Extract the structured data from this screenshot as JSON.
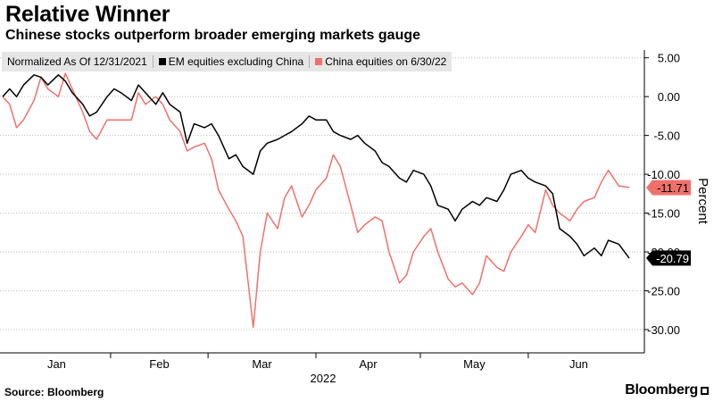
{
  "header": {
    "title": "Relative Winner",
    "subtitle": "Chinese stocks outperform broader emerging markets gauge"
  },
  "legend": {
    "note": "Normalized As Of 12/31/2021",
    "items": [
      {
        "label": "EM equities excluding China",
        "color": "#000000"
      },
      {
        "label": "China equities on 6/30/22",
        "color": "#f0706a"
      }
    ]
  },
  "footer": {
    "source": "Source: Bloomberg",
    "brand": "Bloomberg"
  },
  "chart_data": {
    "type": "line",
    "title": "Relative Winner",
    "subtitle": "Chinese stocks outperform broader emerging markets gauge",
    "xlabel": "2022",
    "ylabel": "Percent",
    "x_ticks": [
      "Jan",
      "Feb",
      "Mar",
      "Apr",
      "May",
      "Jun"
    ],
    "y_ticks": [
      "5.00",
      "0.00",
      "-5.00",
      "-10.00",
      "-15.00",
      "-20.00",
      "-25.00",
      "-30.00"
    ],
    "ylim": [
      -33,
      6
    ],
    "y_axis_side": "right",
    "grid": "horizontal dotted",
    "legend_position": "top-left",
    "series": [
      {
        "name": "EM equities excluding China",
        "color": "#000000",
        "last_value_label": "-20.79",
        "points": [
          [
            "2022-01-01",
            0.0
          ],
          [
            "2022-01-03",
            1.0
          ],
          [
            "2022-01-05",
            0.0
          ],
          [
            "2022-01-07",
            1.5
          ],
          [
            "2022-01-10",
            2.8
          ],
          [
            "2022-01-12",
            2.5
          ],
          [
            "2022-01-14",
            1.5
          ],
          [
            "2022-01-17",
            2.8
          ],
          [
            "2022-01-19",
            2.0
          ],
          [
            "2022-01-21",
            0.5
          ],
          [
            "2022-01-24",
            -1.0
          ],
          [
            "2022-01-26",
            -2.5
          ],
          [
            "2022-01-28",
            -2.0
          ],
          [
            "2022-01-31",
            0.0
          ],
          [
            "2022-02-02",
            1.0
          ],
          [
            "2022-02-04",
            0.5
          ],
          [
            "2022-02-07",
            -0.5
          ],
          [
            "2022-02-09",
            1.5
          ],
          [
            "2022-02-11",
            0.5
          ],
          [
            "2022-02-14",
            -1.0
          ],
          [
            "2022-02-16",
            0.5
          ],
          [
            "2022-02-18",
            -1.0
          ],
          [
            "2022-02-21",
            -2.0
          ],
          [
            "2022-02-23",
            -6.0
          ],
          [
            "2022-02-25",
            -3.5
          ],
          [
            "2022-02-28",
            -4.0
          ],
          [
            "2022-03-02",
            -3.5
          ],
          [
            "2022-03-04",
            -5.0
          ],
          [
            "2022-03-07",
            -8.0
          ],
          [
            "2022-03-09",
            -7.5
          ],
          [
            "2022-03-11",
            -9.0
          ],
          [
            "2022-03-14",
            -10.0
          ],
          [
            "2022-03-16",
            -7.0
          ],
          [
            "2022-03-18",
            -6.0
          ],
          [
            "2022-03-21",
            -5.5
          ],
          [
            "2022-03-23",
            -5.0
          ],
          [
            "2022-03-25",
            -4.5
          ],
          [
            "2022-03-28",
            -3.5
          ],
          [
            "2022-03-30",
            -2.5
          ],
          [
            "2022-04-01",
            -3.0
          ],
          [
            "2022-04-04",
            -3.0
          ],
          [
            "2022-04-06",
            -4.5
          ],
          [
            "2022-04-08",
            -5.0
          ],
          [
            "2022-04-11",
            -5.5
          ],
          [
            "2022-04-13",
            -5.0
          ],
          [
            "2022-04-15",
            -6.0
          ],
          [
            "2022-04-18",
            -7.0
          ],
          [
            "2022-04-20",
            -8.5
          ],
          [
            "2022-04-22",
            -9.0
          ],
          [
            "2022-04-25",
            -10.5
          ],
          [
            "2022-04-27",
            -11.0
          ],
          [
            "2022-04-29",
            -9.5
          ],
          [
            "2022-05-02",
            -10.0
          ],
          [
            "2022-05-04",
            -11.5
          ],
          [
            "2022-05-06",
            -14.0
          ],
          [
            "2022-05-09",
            -14.5
          ],
          [
            "2022-05-11",
            -16.0
          ],
          [
            "2022-05-13",
            -14.5
          ],
          [
            "2022-05-16",
            -13.5
          ],
          [
            "2022-05-18",
            -14.0
          ],
          [
            "2022-05-20",
            -13.0
          ],
          [
            "2022-05-23",
            -13.5
          ],
          [
            "2022-05-25",
            -12.0
          ],
          [
            "2022-05-27",
            -10.0
          ],
          [
            "2022-05-30",
            -9.5
          ],
          [
            "2022-06-01",
            -10.5
          ],
          [
            "2022-06-03",
            -11.0
          ],
          [
            "2022-06-06",
            -11.5
          ],
          [
            "2022-06-08",
            -12.5
          ],
          [
            "2022-06-10",
            -17.0
          ],
          [
            "2022-06-13",
            -18.0
          ],
          [
            "2022-06-15",
            -19.0
          ],
          [
            "2022-06-17",
            -20.5
          ],
          [
            "2022-06-20",
            -19.5
          ],
          [
            "2022-06-22",
            -20.5
          ],
          [
            "2022-06-24",
            -18.5
          ],
          [
            "2022-06-27",
            -19.0
          ],
          [
            "2022-06-30",
            -20.79
          ]
        ]
      },
      {
        "name": "China equities on 6/30/22",
        "color": "#f0706a",
        "last_value_label": "-11.71",
        "points": [
          [
            "2022-01-01",
            0.0
          ],
          [
            "2022-01-03",
            -1.0
          ],
          [
            "2022-01-05",
            -4.0
          ],
          [
            "2022-01-07",
            -3.0
          ],
          [
            "2022-01-10",
            -0.5
          ],
          [
            "2022-01-12",
            2.5
          ],
          [
            "2022-01-14",
            1.0
          ],
          [
            "2022-01-17",
            0.0
          ],
          [
            "2022-01-19",
            3.0
          ],
          [
            "2022-01-21",
            1.0
          ],
          [
            "2022-01-24",
            -2.0
          ],
          [
            "2022-01-26",
            -4.5
          ],
          [
            "2022-01-28",
            -5.5
          ],
          [
            "2022-01-31",
            -3.0
          ],
          [
            "2022-02-02",
            -3.0
          ],
          [
            "2022-02-04",
            -3.0
          ],
          [
            "2022-02-07",
            -3.0
          ],
          [
            "2022-02-09",
            0.5
          ],
          [
            "2022-02-11",
            -1.0
          ],
          [
            "2022-02-14",
            0.0
          ],
          [
            "2022-02-16",
            -1.0
          ],
          [
            "2022-02-18",
            -3.0
          ],
          [
            "2022-02-21",
            -4.5
          ],
          [
            "2022-02-23",
            -7.0
          ],
          [
            "2022-02-25",
            -6.5
          ],
          [
            "2022-02-28",
            -6.0
          ],
          [
            "2022-03-02",
            -8.0
          ],
          [
            "2022-03-04",
            -12.0
          ],
          [
            "2022-03-07",
            -14.5
          ],
          [
            "2022-03-09",
            -16.0
          ],
          [
            "2022-03-11",
            -18.0
          ],
          [
            "2022-03-14",
            -29.7
          ],
          [
            "2022-03-16",
            -20.0
          ],
          [
            "2022-03-18",
            -15.0
          ],
          [
            "2022-03-21",
            -17.0
          ],
          [
            "2022-03-23",
            -13.0
          ],
          [
            "2022-03-25",
            -11.5
          ],
          [
            "2022-03-28",
            -15.5
          ],
          [
            "2022-03-30",
            -14.0
          ],
          [
            "2022-04-01",
            -12.0
          ],
          [
            "2022-04-04",
            -10.5
          ],
          [
            "2022-04-06",
            -7.5
          ],
          [
            "2022-04-08",
            -9.0
          ],
          [
            "2022-04-11",
            -14.0
          ],
          [
            "2022-04-13",
            -17.5
          ],
          [
            "2022-04-15",
            -16.5
          ],
          [
            "2022-04-18",
            -15.5
          ],
          [
            "2022-04-20",
            -16.0
          ],
          [
            "2022-04-22",
            -20.0
          ],
          [
            "2022-04-25",
            -24.0
          ],
          [
            "2022-04-27",
            -23.0
          ],
          [
            "2022-04-29",
            -20.0
          ],
          [
            "2022-05-02",
            -18.0
          ],
          [
            "2022-05-04",
            -17.0
          ],
          [
            "2022-05-06",
            -20.0
          ],
          [
            "2022-05-09",
            -23.5
          ],
          [
            "2022-05-11",
            -24.5
          ],
          [
            "2022-05-13",
            -24.0
          ],
          [
            "2022-05-16",
            -25.5
          ],
          [
            "2022-05-18",
            -24.0
          ],
          [
            "2022-05-20",
            -20.5
          ],
          [
            "2022-05-23",
            -22.0
          ],
          [
            "2022-05-25",
            -22.5
          ],
          [
            "2022-05-27",
            -20.0
          ],
          [
            "2022-05-30",
            -18.0
          ],
          [
            "2022-06-01",
            -16.5
          ],
          [
            "2022-06-03",
            -17.5
          ],
          [
            "2022-06-06",
            -12.0
          ],
          [
            "2022-06-08",
            -14.0
          ],
          [
            "2022-06-10",
            -15.0
          ],
          [
            "2022-06-13",
            -16.0
          ],
          [
            "2022-06-15",
            -14.5
          ],
          [
            "2022-06-17",
            -13.5
          ],
          [
            "2022-06-20",
            -13.0
          ],
          [
            "2022-06-22",
            -11.0
          ],
          [
            "2022-06-24",
            -9.5
          ],
          [
            "2022-06-27",
            -11.5
          ],
          [
            "2022-06-30",
            -11.71
          ]
        ]
      }
    ]
  }
}
